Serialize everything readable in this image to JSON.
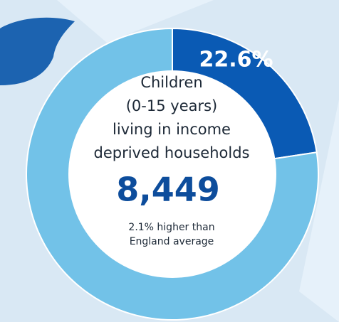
{
  "chart_data": {
    "type": "donut",
    "values": [
      22.6,
      77.4
    ],
    "value_labels": [
      "22.6%",
      null
    ],
    "colors": [
      "#0a5ab4",
      "#72c2e8"
    ],
    "center_text": [
      "Children",
      "(0-15 years)",
      "living in income",
      "deprived households"
    ],
    "center_value": "8,449",
    "note": [
      "2.1% higher than",
      "England average"
    ]
  }
}
